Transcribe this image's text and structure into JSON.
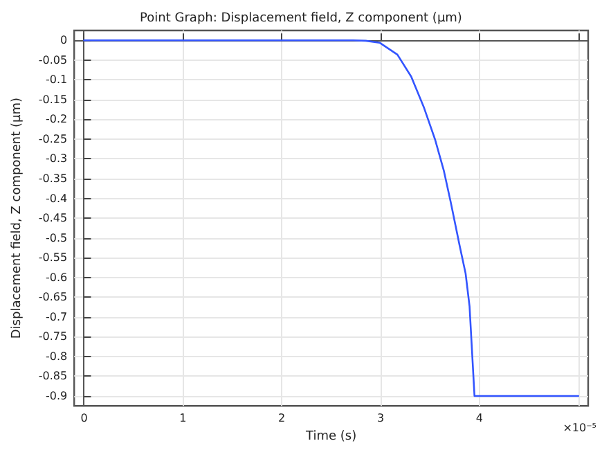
{
  "chart_data": {
    "type": "line",
    "title": "Point Graph: Displacement field, Z component (μm)",
    "xlabel": "Time (s)",
    "ylabel": "Displacement field, Z component (μm)",
    "x": [
      0,
      2.5,
      2.72,
      2.85,
      2.99,
      3.17,
      3.31,
      3.44,
      3.55,
      3.64,
      3.71,
      3.8,
      3.86,
      3.9,
      3.95,
      5.0
    ],
    "series": [
      {
        "color": "#3355ff",
        "values": [
          0,
          0,
          0,
          -0.001,
          -0.006,
          -0.036,
          -0.092,
          -0.171,
          -0.25,
          -0.33,
          -0.41,
          -0.52,
          -0.59,
          -0.673,
          -0.9,
          -0.9
        ]
      }
    ],
    "xlim": [
      -0.1,
      5.1
    ],
    "xticks": [
      0,
      1,
      2,
      3,
      4,
      {
        "value": 5,
        "label": null
      }
    ],
    "annotations": [
      "×10⁻⁵"
    ],
    "ylim": [
      -0.925,
      0.025
    ],
    "yticks": [
      0,
      -0.05,
      -0.1,
      -0.15,
      -0.2,
      -0.25,
      -0.3,
      -0.35,
      -0.4,
      -0.45,
      -0.5,
      -0.55,
      -0.6,
      -0.65,
      -0.7,
      -0.75,
      -0.8,
      -0.85,
      -0.9
    ],
    "grid": true,
    "marker": "none",
    "line_style": "solid"
  }
}
